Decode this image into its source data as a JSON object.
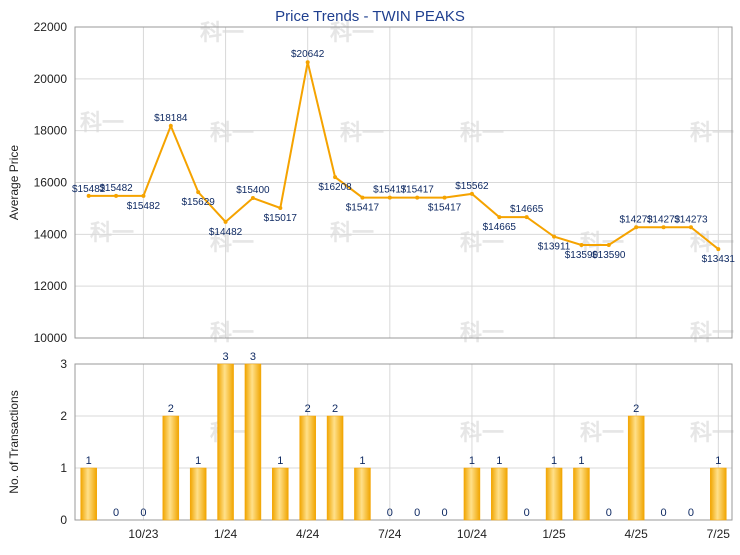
{
  "title": "Price Trends - TWIN PEAKS",
  "chart_data": [
    {
      "type": "line",
      "ylabel": "Average Price",
      "ylim": [
        10000,
        22000
      ],
      "yticks": [
        10000,
        12000,
        14000,
        16000,
        18000,
        20000,
        22000
      ],
      "grid": true,
      "series": [
        {
          "color": "#f5a300",
          "values": [
            15482,
            15482,
            15482,
            18184,
            15629,
            14482,
            15400,
            15017,
            20642,
            16208,
            15417,
            15417,
            15417,
            15417,
            15562,
            14665,
            14665,
            13911,
            13590,
            13590,
            14273,
            14273,
            14273,
            13431
          ],
          "labels": [
            "$15482",
            "$15482",
            "$15482",
            "$18184",
            "$15629",
            "$14482",
            "$15400",
            "$15017",
            "$20642",
            "$16208",
            "$15417",
            "$15417",
            "$15417",
            "$15417",
            "$15562",
            "$14665",
            "$14665",
            "$13911",
            "$13590",
            "$13590",
            "$14273",
            "$14273",
            "$14273",
            "$13431"
          ]
        }
      ]
    },
    {
      "type": "bar",
      "ylabel": "No. of Transactions",
      "ylim": [
        0,
        3
      ],
      "yticks": [
        0,
        1,
        2,
        3
      ],
      "grid": true,
      "values": [
        1,
        0,
        0,
        2,
        1,
        3,
        3,
        1,
        2,
        2,
        1,
        0,
        0,
        0,
        1,
        1,
        0,
        1,
        1,
        0,
        2,
        0,
        0,
        1
      ],
      "color": "#f5a300",
      "x_tick_labels": [
        "10/23",
        "1/24",
        "4/24",
        "7/24",
        "10/24",
        "1/25",
        "4/25",
        "7/25"
      ]
    }
  ],
  "watermark_text": "科一"
}
